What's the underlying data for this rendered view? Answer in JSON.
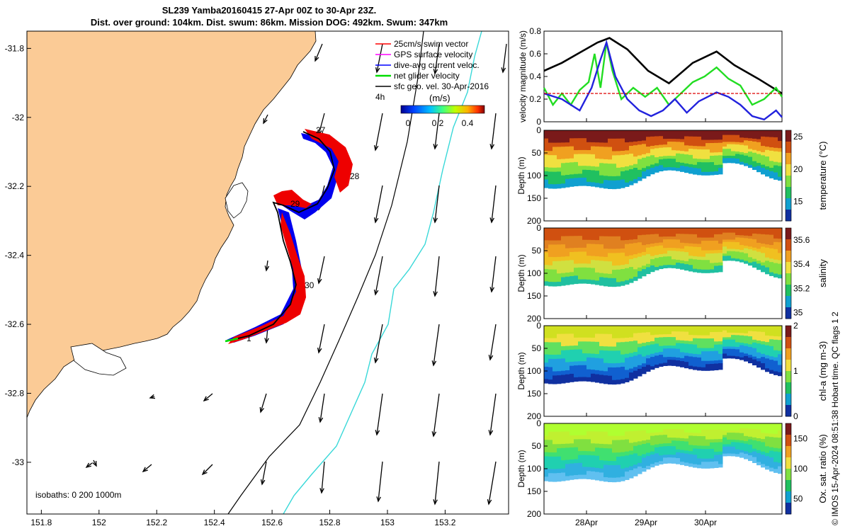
{
  "title": {
    "line1": "SL239 Yamba20160415 27-Apr 00Z to 30-Apr 23Z.",
    "line2": "Dist. over ground: 104km. Dist. swum: 86km. Mission DOG: 492km. Swum: 347km"
  },
  "map": {
    "legend": [
      {
        "label": "25cm/s swim vector",
        "color": "#ff0000"
      },
      {
        "label": "GPS surface velocity",
        "color": "#ff00ff"
      },
      {
        "label": "dive-avg current veloc.",
        "color": "#0000ff"
      },
      {
        "label": "net glider velocity",
        "color": "#00dd00"
      },
      {
        "label": "sfc geo. vel. 30-Apr-2016",
        "color": "#000000"
      }
    ],
    "interval_label": "4h",
    "colorbar": {
      "unit": "(m/s)",
      "ticks": [
        "0",
        "0.2",
        "0.4"
      ]
    },
    "isobath_note": "isobaths: 0   200  1000m",
    "day_labels": [
      "27",
      "28",
      "29",
      "30",
      "1"
    ],
    "colors": {
      "land": "#fbcb96",
      "isobath_200": "#000000",
      "isobath_1000": "#38d8d8"
    }
  },
  "footer": "© IMOS 15-Apr-2024 08:51:38 Hobart time. QC flags 1  2",
  "chart_data": [
    {
      "type": "scatter",
      "title": "",
      "xlabel": "",
      "ylabel": "",
      "x_ticks": [
        "151.8",
        "152",
        "152.2",
        "152.4",
        "152.6",
        "152.8",
        "153",
        "153.2"
      ],
      "y_ticks": [
        "-31.8",
        "-32",
        "-32.2",
        "-32.4",
        "-32.6",
        "-32.8",
        "-33"
      ],
      "xlim": [
        151.75,
        153.42
      ],
      "ylim": [
        -33.15,
        -31.75
      ],
      "series": [
        {
          "name": "net glider velocity",
          "x": [
            152.46,
            152.56,
            152.63,
            152.64,
            152.62,
            152.59,
            152.61,
            152.66,
            152.7,
            152.68,
            152.64,
            152.67,
            152.69
          ],
          "y": [
            -32.66,
            -32.61,
            -32.55,
            -32.49,
            -32.37,
            -32.26,
            -32.24,
            -32.25,
            -32.21,
            -32.16,
            -32.09,
            -32.06,
            -32.07
          ]
        }
      ]
    },
    {
      "type": "line",
      "title": "",
      "ylabel": "velocity magnitude (m/s)",
      "y_ticks": [
        "0",
        "0.2",
        "0.4",
        "0.6",
        "0.8"
      ],
      "ylim": [
        0,
        0.8
      ],
      "x_ticks": [
        "28Apr",
        "29Apr",
        "30Apr"
      ],
      "xlim": [
        0,
        4
      ],
      "series": [
        {
          "name": "",
          "color": "#000000",
          "x": [
            0,
            0.3,
            0.6,
            0.9,
            1.1,
            1.4,
            1.75,
            2.1,
            2.5,
            2.9,
            3.2,
            3.6,
            4
          ],
          "y": [
            0.45,
            0.52,
            0.61,
            0.7,
            0.74,
            0.64,
            0.45,
            0.34,
            0.52,
            0.62,
            0.5,
            0.38,
            0.25
          ]
        },
        {
          "name": "",
          "color": "#22dd22",
          "x": [
            0,
            0.15,
            0.3,
            0.45,
            0.6,
            0.75,
            0.85,
            0.95,
            1.05,
            1.15,
            1.3,
            1.5,
            1.7,
            1.9,
            2.1,
            2.3,
            2.5,
            2.7,
            2.9,
            3.1,
            3.3,
            3.5,
            3.7,
            3.9,
            4
          ],
          "y": [
            0.3,
            0.15,
            0.25,
            0.15,
            0.28,
            0.35,
            0.6,
            0.3,
            0.7,
            0.45,
            0.2,
            0.3,
            0.22,
            0.3,
            0.15,
            0.25,
            0.35,
            0.4,
            0.48,
            0.38,
            0.32,
            0.15,
            0.2,
            0.3,
            0.22
          ]
        },
        {
          "name": "",
          "color": "#2222dd",
          "x": [
            0,
            0.3,
            0.6,
            0.8,
            0.95,
            1.05,
            1.2,
            1.4,
            1.6,
            1.8,
            2.0,
            2.2,
            2.4,
            2.6,
            2.9,
            3.1,
            3.3,
            3.5,
            3.7,
            3.9,
            4
          ],
          "y": [
            0.25,
            0.2,
            0.1,
            0.3,
            0.55,
            0.7,
            0.4,
            0.2,
            0.1,
            0.05,
            0.1,
            0.2,
            0.08,
            0.18,
            0.26,
            0.22,
            0.15,
            0.05,
            0.02,
            0.1,
            0.04
          ]
        },
        {
          "name": "",
          "color": "#dd0000",
          "x": [
            0,
            4
          ],
          "y": [
            0.25,
            0.25
          ]
        }
      ]
    },
    {
      "type": "heatmap",
      "ylabel": "Depth (m)",
      "colorbar_label": "temperature (°C)",
      "y_ticks": [
        "0",
        "50",
        "100",
        "150",
        "200"
      ],
      "cbar_ticks": [
        "25",
        "20",
        "15"
      ],
      "cbar_range": [
        12,
        26
      ]
    },
    {
      "type": "heatmap",
      "ylabel": "Depth (m)",
      "colorbar_label": "salinity",
      "y_ticks": [
        "0",
        "50",
        "100",
        "150",
        "200"
      ],
      "cbar_ticks": [
        "35.6",
        "35.4",
        "35.2",
        "35"
      ],
      "cbar_range": [
        34.95,
        35.7
      ]
    },
    {
      "type": "heatmap",
      "ylabel": "Depth (m)",
      "colorbar_label": "chl-a (mg m-3)",
      "y_ticks": [
        "0",
        "50",
        "100",
        "150",
        "200"
      ],
      "cbar_ticks": [
        "2",
        "1",
        "0"
      ],
      "cbar_range": [
        0,
        2
      ]
    },
    {
      "type": "heatmap",
      "ylabel": "Depth (m)",
      "colorbar_label": "Ox. sat. ratio (%)",
      "y_ticks": [
        "0",
        "50",
        "100",
        "150",
        "200"
      ],
      "cbar_ticks": [
        "150",
        "100",
        "50"
      ],
      "cbar_range": [
        25,
        175
      ],
      "x_ticks": [
        "28Apr",
        "29Apr",
        "30Apr"
      ]
    }
  ]
}
